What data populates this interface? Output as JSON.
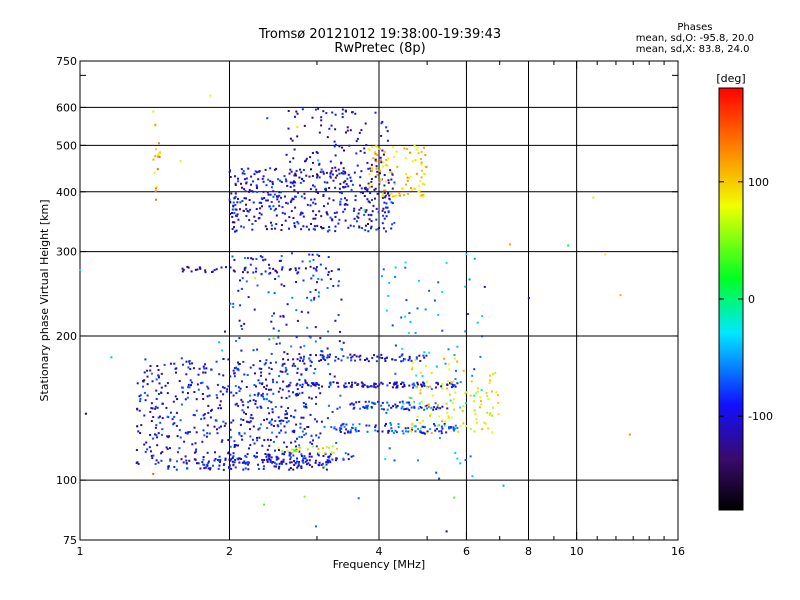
{
  "header": {
    "title": "Tromsø 20121012 19:38:00-19:39:43",
    "subtitle": "RwPretec (8p)"
  },
  "stats": {
    "heading": "Phases",
    "line_o": "mean, sd,O: -95.8, 20.0",
    "line_x": "mean, sd,X: 83.8, 24.0"
  },
  "colorbar": {
    "unit": "[deg]",
    "ticks": [
      "100",
      "0",
      "-100"
    ],
    "tick_values": [
      100,
      0,
      -100
    ],
    "range": [
      -180,
      180
    ]
  },
  "chart_data": {
    "type": "scatter",
    "title": "Tromsø 20121012 19:38:00-19:39:43",
    "subtitle": "RwPretec (8p)",
    "xlabel": "Frequency [MHz]",
    "ylabel": "Stationary phase Virtual Height [km]",
    "x_scale": "log",
    "y_scale": "log",
    "xlim": [
      1,
      16
    ],
    "ylim": [
      75,
      750
    ],
    "x_ticks": [
      1,
      2,
      4,
      6,
      8,
      10,
      16
    ],
    "x_tick_labels": [
      "1",
      "2",
      "4",
      "6",
      "8",
      "10",
      "16"
    ],
    "x_grid": [
      2,
      4,
      6,
      8,
      10
    ],
    "y_ticks": [
      75,
      100,
      200,
      300,
      400,
      500,
      600,
      750
    ],
    "y_tick_labels": [
      "75",
      "100",
      "200",
      "300",
      "400",
      "500",
      "600",
      "750"
    ],
    "y_grid": [
      100,
      200,
      300,
      400,
      500,
      600
    ],
    "grid": true,
    "color_by": "phase [deg]",
    "traces": [
      {
        "x_range": [
          1.5,
          3.2
        ],
        "height": 108,
        "phase": -110,
        "count": 120,
        "spread": 3
      },
      {
        "x_range": [
          2.0,
          3.6
        ],
        "height": 112,
        "phase": -100,
        "count": 60,
        "spread": 2
      },
      {
        "x_range": [
          1.3,
          3.0
        ],
        "height_range": [
          108,
          180
        ],
        "phase": -105,
        "count": 500,
        "spread": 25
      },
      {
        "x_range": [
          2.0,
          3.4
        ],
        "height_range": [
          118,
          300
        ],
        "phase": -95,
        "count": 220,
        "spread": 60
      },
      {
        "x_range": [
          2.6,
          5.8
        ],
        "height": 158,
        "phase": -110,
        "count": 110,
        "spread": 2
      },
      {
        "x_range": [
          3.5,
          5.5
        ],
        "height": 143,
        "phase": -95,
        "count": 70,
        "spread": 3
      },
      {
        "x_range": [
          3.2,
          5.8
        ],
        "height": 128,
        "phase": -90,
        "count": 90,
        "spread": 3
      },
      {
        "x_range": [
          2.7,
          5.0
        ],
        "height": 180,
        "phase": -110,
        "count": 70,
        "spread": 3
      },
      {
        "x_range": [
          4.6,
          6.0
        ],
        "height_range": [
          125,
          180
        ],
        "phase": 90,
        "count": 70,
        "spread": 4
      },
      {
        "x_range": [
          6.0,
          7.0
        ],
        "height_range": [
          125,
          170
        ],
        "phase": 80,
        "count": 40,
        "spread": 4
      },
      {
        "x_range": [
          2.5,
          3.3
        ],
        "height": 116,
        "phase": 80,
        "count": 25,
        "spread": 2
      },
      {
        "x_range": [
          1.6,
          3.0
        ],
        "height": 275,
        "phase": -120,
        "count": 45,
        "spread": 4
      },
      {
        "x_range": [
          2.0,
          4.3
        ],
        "height_range": [
          330,
          450
        ],
        "phase": -110,
        "count": 420,
        "spread": 20
      },
      {
        "x_range": [
          2.6,
          4.2
        ],
        "height_range": [
          400,
          600
        ],
        "phase": -120,
        "count": 120,
        "spread": 25
      },
      {
        "x_range": [
          3.8,
          5.0
        ],
        "height_range": [
          390,
          500
        ],
        "phase": 100,
        "count": 100,
        "spread": 20
      },
      {
        "x_range": [
          1.4,
          1.45
        ],
        "height_range": [
          380,
          600
        ],
        "phase": 110,
        "count": 18,
        "spread": 10
      },
      {
        "x_range": [
          4.0,
          6.5
        ],
        "height_range": [
          100,
          300
        ],
        "phase": -60,
        "count": 90,
        "spread": 40
      },
      {
        "x_range": [
          1.0,
          16.0
        ],
        "height_range": [
          75,
          650
        ],
        "phase": 0,
        "count": 40,
        "spread": 50
      }
    ]
  }
}
